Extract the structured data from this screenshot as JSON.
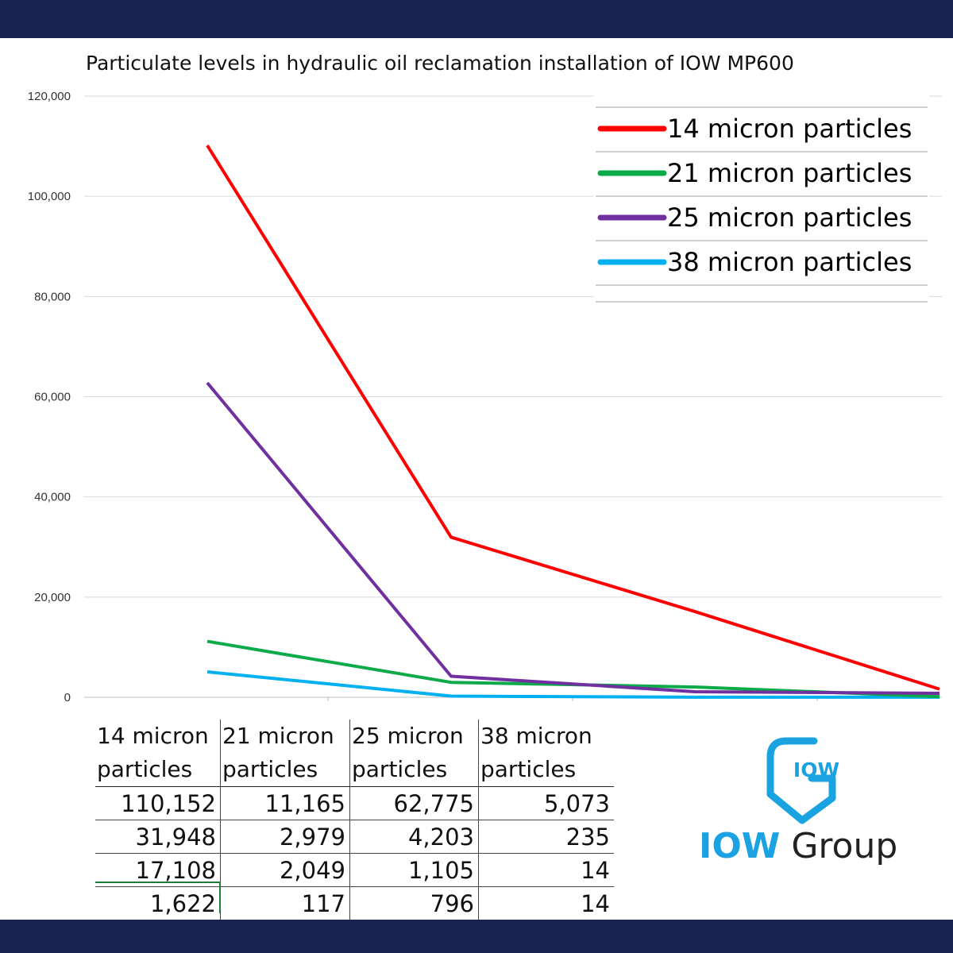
{
  "chart_data": {
    "type": "line",
    "title": "Particulate levels in hydraulic oil reclamation installation of IOW MP600",
    "xlabel": "",
    "ylabel": "",
    "ylim": [
      0,
      120000
    ],
    "yticks": [
      "0",
      "20,000",
      "40,000",
      "60,000",
      "80,000",
      "100,000",
      "120,000"
    ],
    "ytick_values": [
      0,
      20000,
      40000,
      60000,
      80000,
      100000,
      120000
    ],
    "x": [
      1,
      2,
      3,
      4
    ],
    "grid": true,
    "legend_position": "top-right",
    "series": [
      {
        "name": "14 micron particles",
        "color": "#ff0000",
        "values": [
          110152,
          31948,
          17108,
          1622
        ]
      },
      {
        "name": "21 micron particles",
        "color": "#0daa4a",
        "values": [
          11165,
          2979,
          2049,
          117
        ]
      },
      {
        "name": "25 micron particles",
        "color": "#7030a0",
        "values": [
          62775,
          4203,
          1105,
          796
        ]
      },
      {
        "name": "38 micron particles",
        "color": "#00b0f0",
        "values": [
          5073,
          235,
          14,
          14
        ]
      }
    ]
  },
  "table": {
    "headers": [
      {
        "line1": "14 micron",
        "line2": "particles"
      },
      {
        "line1": "21 micron",
        "line2": "particles"
      },
      {
        "line1": "25 micron",
        "line2": "particles"
      },
      {
        "line1": "38 micron",
        "line2": "particles"
      }
    ],
    "rows": [
      [
        "110,152",
        "11,165",
        "62,775",
        "5,073"
      ],
      [
        "31,948",
        "2,979",
        "4,203",
        "235"
      ],
      [
        "17,108",
        "2,049",
        "1,105",
        "14"
      ],
      [
        "1,622",
        "117",
        "796",
        "14"
      ]
    ]
  },
  "logo": {
    "emblem_text": "IOW",
    "word_iow": "IOW",
    "word_group": "Group",
    "brand_color": "#1aa3e0"
  },
  "colors": {
    "band": "#1a2350",
    "grid": "#d9d9d9"
  }
}
